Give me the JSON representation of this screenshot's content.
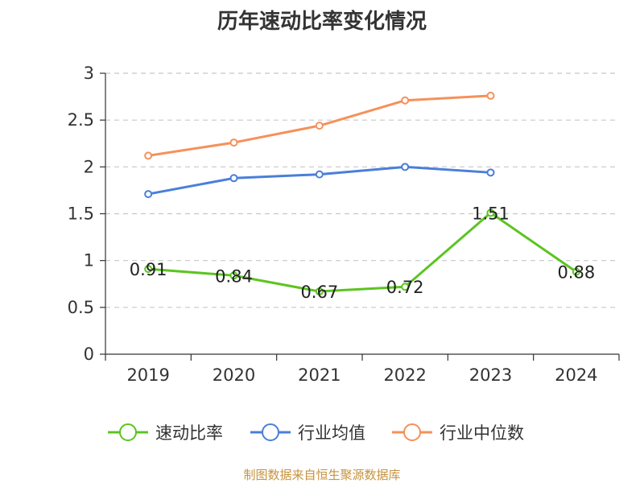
{
  "chart_data": {
    "type": "line",
    "title": "历年速动比率变化情况",
    "categories": [
      "2019",
      "2020",
      "2021",
      "2022",
      "2023",
      "2024"
    ],
    "ylim": [
      0,
      3
    ],
    "yticks": [
      "0",
      "0.5",
      "1",
      "1.5",
      "2",
      "2.5",
      "3"
    ],
    "series": [
      {
        "name": "速动比率",
        "color": "#5cc421",
        "values": [
          0.91,
          0.84,
          0.67,
          0.72,
          1.51,
          0.88
        ],
        "labels": [
          "0.91",
          "0.84",
          "0.67",
          "0.72",
          "1.51",
          "0.88"
        ]
      },
      {
        "name": "行业均值",
        "color": "#4a7fd9",
        "values": [
          1.71,
          1.88,
          1.92,
          2.0,
          1.94,
          null
        ]
      },
      {
        "name": "行业中位数",
        "color": "#f5915a",
        "values": [
          2.12,
          2.26,
          2.44,
          2.71,
          2.76,
          null
        ]
      }
    ],
    "legend_position": "bottom",
    "grid": true
  },
  "source_text": "制图数据来自恒生聚源数据库"
}
